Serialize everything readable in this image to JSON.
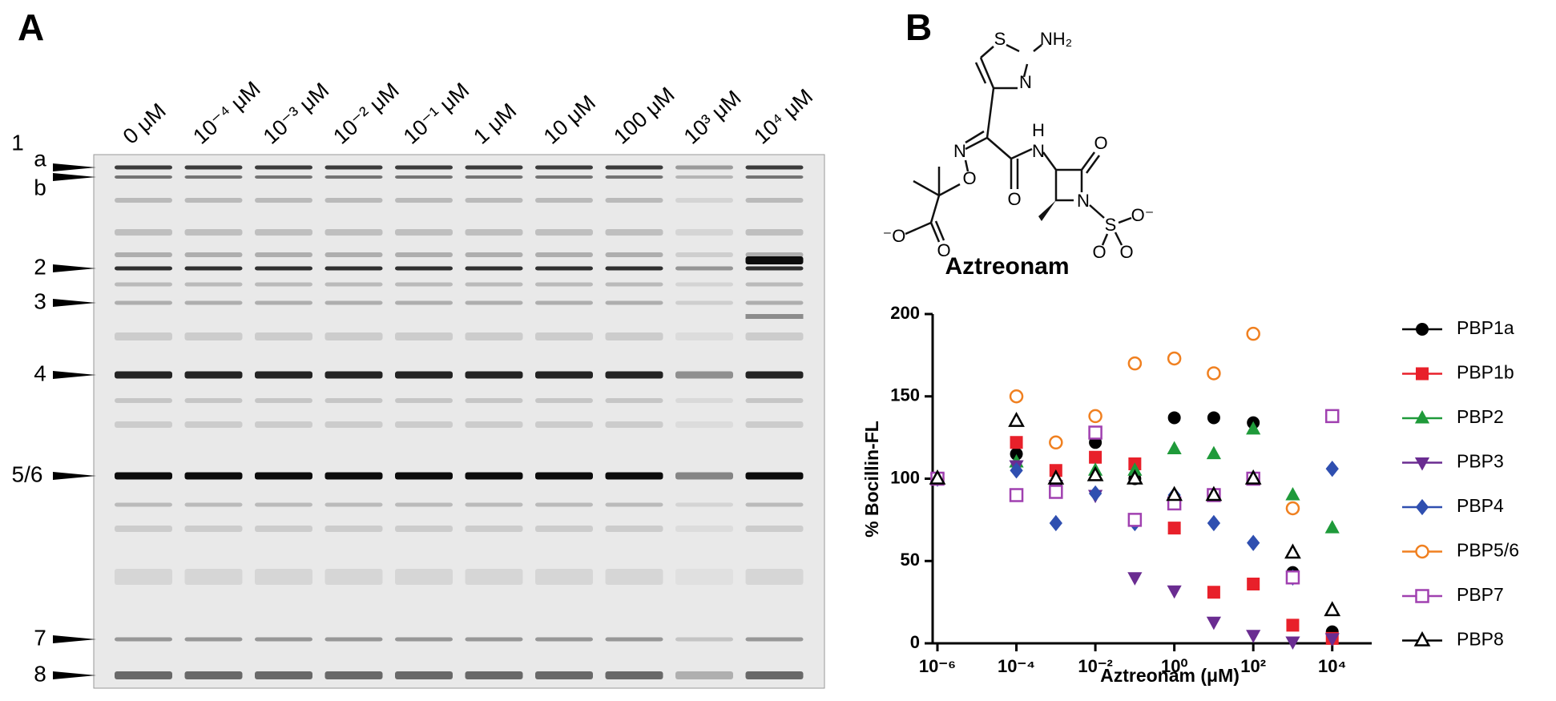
{
  "panel_labels": [
    "A",
    "B"
  ],
  "gel": {
    "lane_labels": [
      "0 μM",
      "10⁻⁴ μM",
      "10⁻³ μM",
      "10⁻² μM",
      "10⁻¹ μM",
      "1 μM",
      "10 μM",
      "100 μM",
      "10³ μM",
      "10⁴ μM"
    ],
    "band_labels": [
      "1",
      "a",
      "b",
      "2",
      "3",
      "4",
      "5/6",
      "7",
      "8"
    ]
  },
  "molecule": {
    "name": "Aztreonam",
    "atoms": [
      "S",
      "NH₂",
      "N",
      "N",
      "O",
      "O",
      "H",
      "N",
      "O",
      "N",
      "⁻O",
      "O",
      "S",
      "O⁻",
      "O",
      "O"
    ]
  },
  "chart_data": {
    "type": "scatter",
    "xscale": "log",
    "xlabel": "Aztreonam (μM)",
    "ylabel": "% Bocillin-FL",
    "x": [
      1e-06,
      0.0001,
      0.001,
      0.01,
      0.1,
      1,
      10,
      100,
      1000,
      10000
    ],
    "xlim": [
      1e-06,
      100000.0
    ],
    "xticks": [
      {
        "value": 1e-06,
        "label": "10⁻⁶"
      },
      {
        "value": 0.0001,
        "label": "10⁻⁴"
      },
      {
        "value": 0.01,
        "label": "10⁻²"
      },
      {
        "value": 1,
        "label": "10⁰"
      },
      {
        "value": 100,
        "label": "10²"
      },
      {
        "value": 10000,
        "label": "10⁴"
      }
    ],
    "ylim": [
      0,
      200
    ],
    "yticks": [
      0,
      50,
      100,
      150,
      200
    ],
    "series": [
      {
        "name": "PBP1a",
        "color": "#000000",
        "marker": "circle",
        "values": [
          100,
          115,
          97,
          122,
          100,
          137,
          137,
          134,
          43,
          7
        ]
      },
      {
        "name": "PBP1b",
        "color": "#e8202a",
        "marker": "square",
        "values": [
          100,
          122,
          105,
          113,
          109,
          70,
          31,
          36,
          11,
          3
        ]
      },
      {
        "name": "PBP2",
        "color": "#1f9a3a",
        "marker": "triangle",
        "values": [
          100,
          110,
          100,
          105,
          105,
          118,
          115,
          130,
          90,
          70
        ]
      },
      {
        "name": "PBP3",
        "color": "#6a2c91",
        "marker": "triangle-down",
        "values": [
          100,
          108,
          96,
          90,
          40,
          32,
          13,
          5,
          1,
          3
        ]
      },
      {
        "name": "PBP4",
        "color": "#2f4fb0",
        "marker": "diamond",
        "values": [
          100,
          105,
          73,
          91,
          73,
          90,
          73,
          61,
          40,
          106
        ]
      },
      {
        "name": "PBP5/6",
        "color": "#f08020",
        "marker": "circle-open",
        "values": [
          100,
          150,
          122,
          138,
          170,
          173,
          164,
          188,
          82,
          null
        ]
      },
      {
        "name": "PBP7",
        "color": "#a040b0",
        "marker": "square-open",
        "values": [
          100,
          90,
          92,
          128,
          75,
          85,
          90,
          100,
          40,
          138
        ]
      },
      {
        "name": "PBP8",
        "color": "#000000",
        "marker": "triangle-open",
        "values": [
          100,
          135,
          100,
          102,
          100,
          90,
          90,
          100,
          55,
          20
        ]
      }
    ]
  }
}
